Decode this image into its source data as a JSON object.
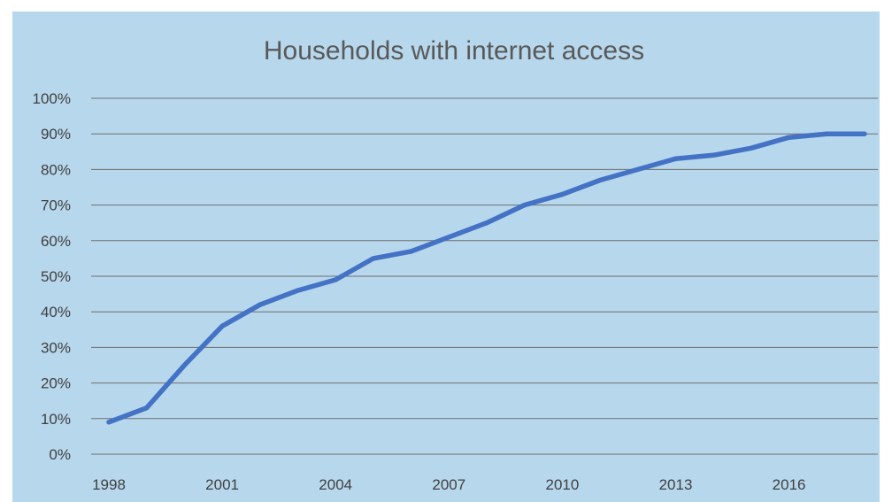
{
  "chart_data": {
    "type": "line",
    "title": "Households with internet access",
    "xlabel": "",
    "ylabel": "",
    "x": [
      1998,
      1999,
      2000,
      2001,
      2002,
      2003,
      2004,
      2005,
      2006,
      2007,
      2008,
      2009,
      2010,
      2011,
      2012,
      2013,
      2014,
      2015,
      2016,
      2017,
      2018
    ],
    "x_tick_labels": [
      "1998",
      "2001",
      "2004",
      "2007",
      "2010",
      "2013",
      "2016"
    ],
    "y_tick_labels": [
      "0%",
      "10%",
      "20%",
      "30%",
      "40%",
      "50%",
      "60%",
      "70%",
      "80%",
      "90%",
      "100%"
    ],
    "ylim": [
      0,
      100
    ],
    "y_unit": "%",
    "grid": true,
    "legend": "none",
    "series": [
      {
        "values": [
          9,
          13,
          25,
          36,
          42,
          46,
          49,
          55,
          57,
          61,
          65,
          70,
          73,
          77,
          80,
          83,
          84,
          86,
          89,
          90,
          90
        ]
      }
    ],
    "colors": {
      "background": "#b7d7ec",
      "line": "#4472c4",
      "gridline": "#6f6f6f",
      "title": "#595959",
      "tick": "#404040"
    }
  }
}
